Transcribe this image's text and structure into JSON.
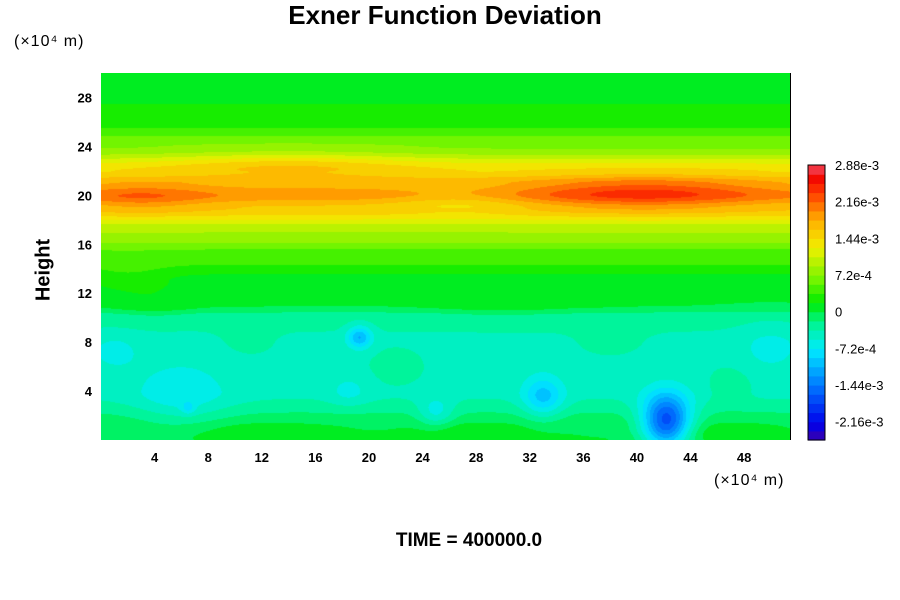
{
  "chart_data": {
    "type": "heatmap",
    "title": "Exner Function Deviation",
    "xlabel": "",
    "ylabel": "Height",
    "x_unit": "(×10⁴ m)",
    "y_unit": "(×10⁴ m)",
    "footer": "TIME = 400000.0",
    "xlim": [
      0,
      51.5
    ],
    "ylim": [
      0,
      30
    ],
    "x_ticks": [
      4,
      8,
      12,
      16,
      20,
      24,
      28,
      32,
      36,
      40,
      44,
      48
    ],
    "y_ticks": [
      4,
      8,
      12,
      16,
      20,
      24,
      28
    ],
    "colorbar": {
      "min": -0.00252,
      "max": 0.00288,
      "levels": 30,
      "tick_values": [
        0.00288,
        0.00216,
        0.00144,
        0.00072,
        0,
        -0.00072,
        -0.00144,
        -0.00216
      ],
      "tick_labels": [
        "2.88e-3",
        "2.16e-3",
        "1.44e-3",
        "7.2e-4",
        "0",
        "-7.2e-4",
        "-1.44e-3",
        "-2.16e-3"
      ]
    },
    "field": {
      "vertical_profile": [
        {
          "height": 0,
          "value": 0.0
        },
        {
          "height": 1,
          "value": -5e-05
        },
        {
          "height": 4,
          "value": -0.0004
        },
        {
          "height": 8,
          "value": -0.0004
        },
        {
          "height": 10,
          "value": -0.0003
        },
        {
          "height": 11,
          "value": 0.0
        },
        {
          "height": 13,
          "value": 0.00012
        },
        {
          "height": 15,
          "value": 0.00045
        },
        {
          "height": 17,
          "value": 0.0009
        },
        {
          "height": 19,
          "value": 0.0016
        },
        {
          "height": 20,
          "value": 0.0019
        },
        {
          "height": 21,
          "value": 0.0017
        },
        {
          "height": 22,
          "value": 0.0014
        },
        {
          "height": 24,
          "value": 0.0007
        },
        {
          "height": 26,
          "value": 0.0003
        },
        {
          "height": 28,
          "value": 0.00015
        },
        {
          "height": 30,
          "value": 0.0001
        }
      ],
      "features": [
        {
          "x": 40.5,
          "y": 20.2,
          "rx": 9,
          "ry": 1.4,
          "amp": 0.00055
        },
        {
          "x": 3,
          "y": 19.8,
          "rx": 5,
          "ry": 1.2,
          "amp": 0.0003
        },
        {
          "x": 14,
          "y": 22.5,
          "rx": 9,
          "ry": 1.2,
          "amp": 0.0003
        },
        {
          "x": 27,
          "y": 19.5,
          "rx": 5,
          "ry": 1.0,
          "amp": -0.00025
        },
        {
          "x": 42.2,
          "y": 1.5,
          "rx": 1.8,
          "ry": 2.2,
          "amp": -0.0016
        },
        {
          "x": 33,
          "y": 3.5,
          "rx": 1.5,
          "ry": 1.7,
          "amp": -0.0006
        },
        {
          "x": 19.3,
          "y": 8.4,
          "rx": 0.9,
          "ry": 0.9,
          "amp": -0.0007
        },
        {
          "x": 25,
          "y": 2.2,
          "rx": 1.3,
          "ry": 1.2,
          "amp": -0.0004
        },
        {
          "x": 6,
          "y": 3.5,
          "rx": 3.5,
          "ry": 2.8,
          "amp": -0.0003
        },
        {
          "x": 6.5,
          "y": 2.6,
          "rx": 0.5,
          "ry": 0.5,
          "amp": -0.0003
        },
        {
          "x": 1,
          "y": 7.2,
          "rx": 2,
          "ry": 1.5,
          "amp": -0.0002
        },
        {
          "x": 50,
          "y": 7.5,
          "rx": 2.5,
          "ry": 2,
          "amp": -0.0002
        },
        {
          "x": 18.5,
          "y": 4,
          "rx": 1.5,
          "ry": 1.3,
          "amp": -0.0002
        },
        {
          "x": 12,
          "y": 0.6,
          "rx": 6,
          "ry": 0.8,
          "amp": 0.0002
        },
        {
          "x": 28,
          "y": 0.6,
          "rx": 5,
          "ry": 0.8,
          "amp": 0.0002
        },
        {
          "x": 47,
          "y": 0.6,
          "rx": 4,
          "ry": 0.8,
          "amp": 0.0002
        },
        {
          "x": 11,
          "y": 8.5,
          "rx": 2,
          "ry": 1.5,
          "amp": 0.00012
        },
        {
          "x": 22,
          "y": 6,
          "rx": 2,
          "ry": 1.5,
          "amp": 0.00012
        },
        {
          "x": 38,
          "y": 8.5,
          "rx": 2.5,
          "ry": 1.5,
          "amp": 0.00012
        },
        {
          "x": 47,
          "y": 4.5,
          "rx": 1.5,
          "ry": 1.5,
          "amp": 0.00015
        },
        {
          "x": 4,
          "y": 11,
          "rx": 3,
          "ry": 1.3,
          "amp": 0.00015
        },
        {
          "x": 30,
          "y": 11,
          "rx": 5,
          "ry": 1.3,
          "amp": 0.00012
        },
        {
          "x": 2,
          "y": 13.5,
          "rx": 3,
          "ry": 1.5,
          "amp": 0.00015
        }
      ]
    }
  }
}
